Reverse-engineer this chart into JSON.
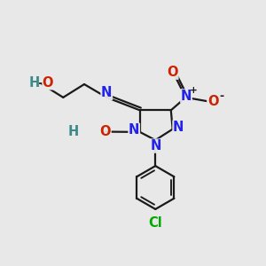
{
  "background_color": "#e8e8e8",
  "bond_color": "#1a1a1a",
  "N_color": "#2222ee",
  "O_color": "#cc2200",
  "Cl_color": "#00aa00",
  "HO_color": "#3a8a8a",
  "figsize": [
    3.0,
    3.0
  ],
  "dpi": 100,
  "xlim": [
    0,
    10
  ],
  "ylim": [
    0,
    10
  ]
}
